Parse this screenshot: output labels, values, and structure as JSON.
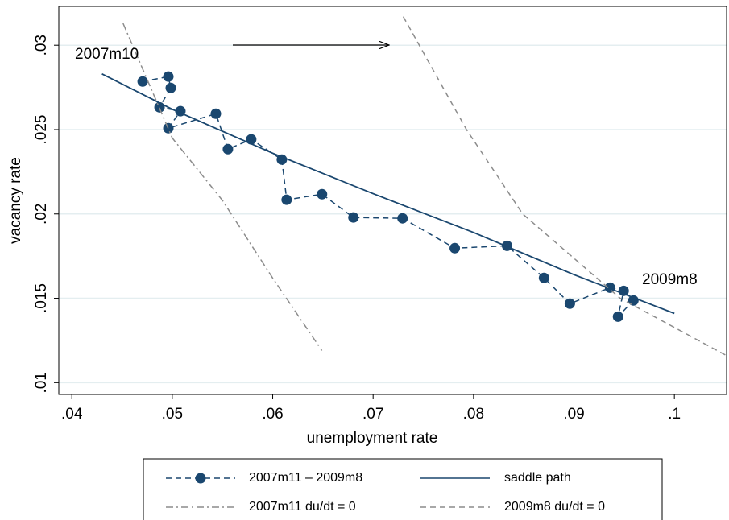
{
  "chart_data": {
    "type": "line",
    "xlabel": "unemployment rate",
    "ylabel": "vacancy rate",
    "xlim": [
      0.0387,
      0.1052
    ],
    "ylim": [
      0.0093,
      0.0323
    ],
    "xticks": [
      {
        "value": 0.04,
        "label": ".04"
      },
      {
        "value": 0.05,
        "label": ".05"
      },
      {
        "value": 0.06,
        "label": ".06"
      },
      {
        "value": 0.07,
        "label": ".07"
      },
      {
        "value": 0.08,
        "label": ".08"
      },
      {
        "value": 0.09,
        "label": ".09"
      },
      {
        "value": 0.1,
        "label": ".1"
      }
    ],
    "yticks": [
      {
        "value": 0.01,
        "label": ".01"
      },
      {
        "value": 0.015,
        "label": ".015"
      },
      {
        "value": 0.02,
        "label": ".02"
      },
      {
        "value": 0.025,
        "label": ".025"
      },
      {
        "value": 0.03,
        "label": ".03"
      }
    ],
    "grid": true,
    "annotations": [
      "2007m10",
      "2009m8"
    ],
    "series": [
      {
        "name": "2007m11 – 2009m8",
        "color": "#1a476f",
        "style": "dashed",
        "marker": true,
        "x": [
          0.04705,
          0.04961,
          0.04985,
          0.04873,
          0.05081,
          0.04961,
          0.05434,
          0.05554,
          0.05786,
          0.06091,
          0.06139,
          0.06491,
          0.06804,
          0.07293,
          0.07813,
          0.08334,
          0.08702,
          0.08959,
          0.09359,
          0.09495,
          0.09439,
          0.09592
        ],
        "y": [
          0.02785,
          0.02814,
          0.02747,
          0.02632,
          0.02609,
          0.02508,
          0.02594,
          0.02384,
          0.02442,
          0.02322,
          0.02084,
          0.02117,
          0.01979,
          0.01974,
          0.01797,
          0.01811,
          0.01621,
          0.01468,
          0.01563,
          0.01544,
          0.01391,
          0.01487
        ]
      },
      {
        "name": "saddle path",
        "color": "#1a476f",
        "style": "solid",
        "marker": false,
        "x": [
          0.043,
          0.05,
          0.06,
          0.07,
          0.08,
          0.09,
          0.1
        ],
        "y": [
          0.0283,
          0.0262,
          0.0236,
          0.0212,
          0.0189,
          0.0164,
          0.0141
        ]
      },
      {
        "name": "2007m11 du/dt = 0",
        "color": "#8c8c8c",
        "style": "dashdot",
        "marker": false,
        "x": [
          0.0451,
          0.05,
          0.055,
          0.06,
          0.0649
        ],
        "y": [
          0.0313,
          0.0245,
          0.0208,
          0.0162,
          0.0119
        ]
      },
      {
        "name": "2009m8 du/dt = 0",
        "color": "#8c8c8c",
        "style": "dashed",
        "marker": false,
        "x": [
          0.073,
          0.0793,
          0.0849,
          0.0946,
          0.1052
        ],
        "y": [
          0.0317,
          0.025,
          0.02,
          0.015,
          0.0116
        ]
      }
    ]
  }
}
